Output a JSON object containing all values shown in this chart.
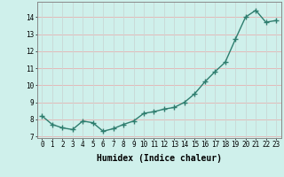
{
  "x": [
    0,
    1,
    2,
    3,
    4,
    5,
    6,
    7,
    8,
    9,
    10,
    11,
    12,
    13,
    14,
    15,
    16,
    17,
    18,
    19,
    20,
    21,
    22,
    23
  ],
  "y": [
    8.2,
    7.7,
    7.5,
    7.4,
    7.9,
    7.8,
    7.3,
    7.45,
    7.7,
    7.9,
    8.35,
    8.45,
    8.6,
    8.7,
    9.0,
    9.5,
    10.2,
    10.8,
    11.35,
    12.7,
    14.0,
    14.4,
    13.7,
    13.8
  ],
  "line_color": "#2e7d6e",
  "marker": "+",
  "markersize": 4,
  "linewidth": 1.0,
  "bg_color": "#cff0eb",
  "grid_color_h": "#e8b0b0",
  "grid_color_v": "#c8d8d5",
  "xlabel": "Humidex (Indice chaleur)",
  "xlabel_fontsize": 7,
  "xlabel_fontweight": "bold",
  "ylabel_ticks": [
    7,
    8,
    9,
    10,
    11,
    12,
    13,
    14
  ],
  "xtick_labels": [
    "0",
    "1",
    "2",
    "3",
    "4",
    "5",
    "6",
    "7",
    "8",
    "9",
    "10",
    "11",
    "12",
    "13",
    "14",
    "15",
    "16",
    "17",
    "18",
    "19",
    "20",
    "21",
    "22",
    "23"
  ],
  "xlim": [
    -0.5,
    23.5
  ],
  "ylim": [
    6.9,
    14.9
  ],
  "tick_fontsize": 5.5,
  "spine_color": "#888888"
}
